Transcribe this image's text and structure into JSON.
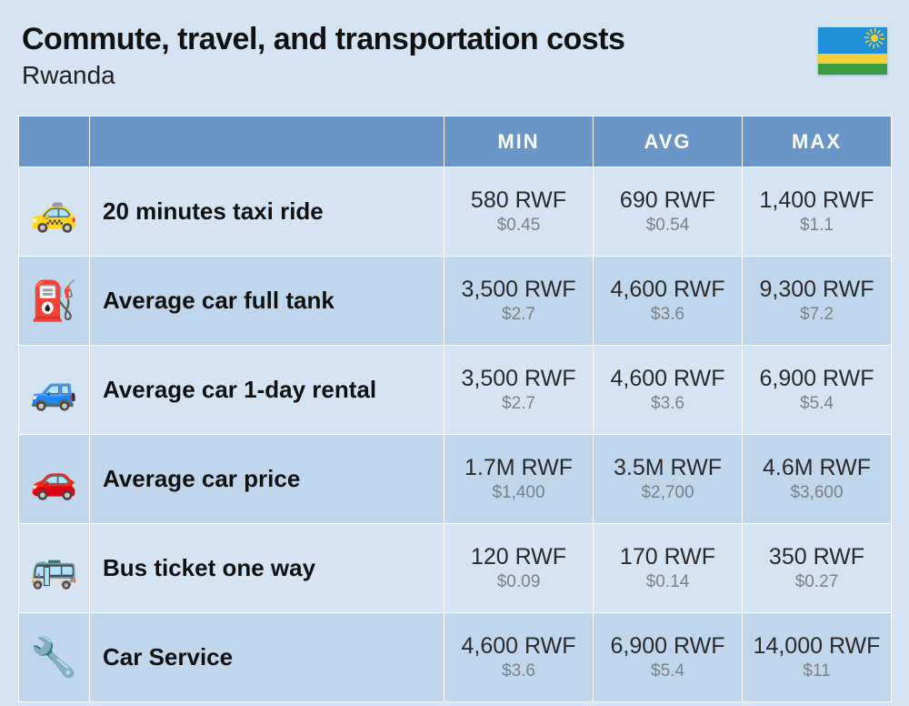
{
  "header": {
    "title": "Commute, travel, and transportation costs",
    "subtitle": "Rwanda"
  },
  "flag": {
    "colors": {
      "blue": "#2090d8",
      "yellow": "#f2d036",
      "green": "#3a9b41"
    }
  },
  "columns": [
    "MIN",
    "AVG",
    "MAX"
  ],
  "rows": [
    {
      "icon": "🚕",
      "label": "20 minutes taxi ride",
      "min_primary": "580 RWF",
      "min_secondary": "$0.45",
      "avg_primary": "690 RWF",
      "avg_secondary": "$0.54",
      "max_primary": "1,400 RWF",
      "max_secondary": "$1.1"
    },
    {
      "icon": "⛽",
      "label": "Average car full tank",
      "min_primary": "3,500 RWF",
      "min_secondary": "$2.7",
      "avg_primary": "4,600 RWF",
      "avg_secondary": "$3.6",
      "max_primary": "9,300 RWF",
      "max_secondary": "$7.2"
    },
    {
      "icon": "🚙",
      "label": "Average car 1-day rental",
      "min_primary": "3,500 RWF",
      "min_secondary": "$2.7",
      "avg_primary": "4,600 RWF",
      "avg_secondary": "$3.6",
      "max_primary": "6,900 RWF",
      "max_secondary": "$5.4"
    },
    {
      "icon": "🚗",
      "label": "Average car price",
      "min_primary": "1.7M RWF",
      "min_secondary": "$1,400",
      "avg_primary": "3.5M RWF",
      "avg_secondary": "$2,700",
      "max_primary": "4.6M RWF",
      "max_secondary": "$3,600"
    },
    {
      "icon": "🚌",
      "label": "Bus ticket one way",
      "min_primary": "120 RWF",
      "min_secondary": "$0.09",
      "avg_primary": "170 RWF",
      "avg_secondary": "$0.14",
      "max_primary": "350 RWF",
      "max_secondary": "$0.27"
    },
    {
      "icon": "🔧",
      "label": "Car Service",
      "min_primary": "4,600 RWF",
      "min_secondary": "$3.6",
      "avg_primary": "6,900 RWF",
      "avg_secondary": "$5.4",
      "max_primary": "14,000 RWF",
      "max_secondary": "$11"
    }
  ],
  "styles": {
    "page_bg": "#d5e4f3",
    "header_bg": "#6a95c7",
    "header_fg": "#ffffff",
    "row_odd_bg": "#d5e4f3",
    "row_even_bg": "#c0d6ed",
    "primary_text": "#2a2a2a",
    "secondary_text": "#7a8288",
    "title_fontsize": 34,
    "subtitle_fontsize": 28,
    "header_fontsize": 22,
    "label_fontsize": 26,
    "primary_fontsize": 25,
    "secondary_fontsize": 19
  }
}
